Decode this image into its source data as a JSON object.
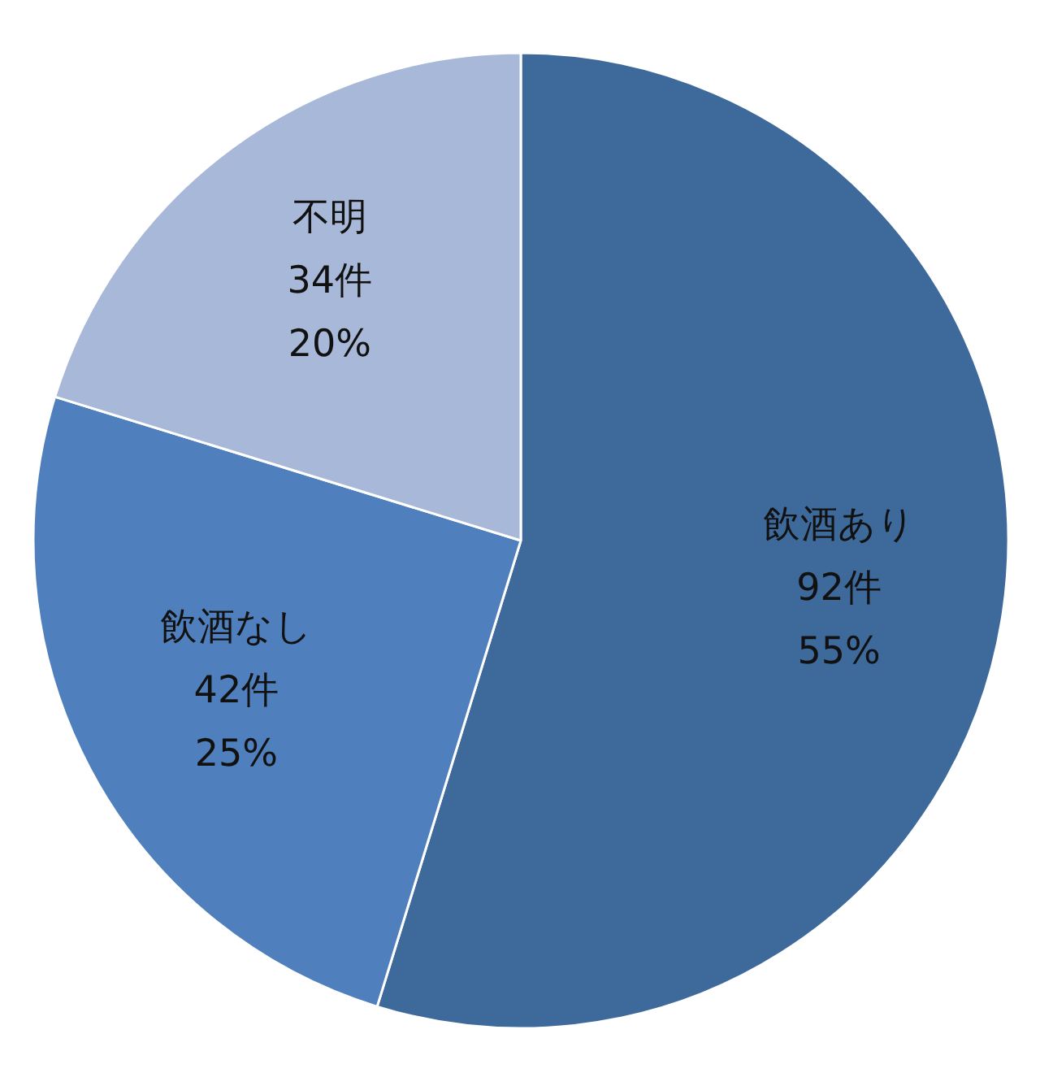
{
  "chart_data": {
    "type": "pie",
    "categories": [
      "飲酒あり",
      "飲酒なし",
      "不明"
    ],
    "values": [
      92,
      42,
      34
    ],
    "colors": [
      "#3e6a9b",
      "#4f80bd",
      "#a8b8d8"
    ],
    "value_labels": [
      "92件\n55%",
      "42件\n25%",
      "34件\n20%"
    ]
  }
}
